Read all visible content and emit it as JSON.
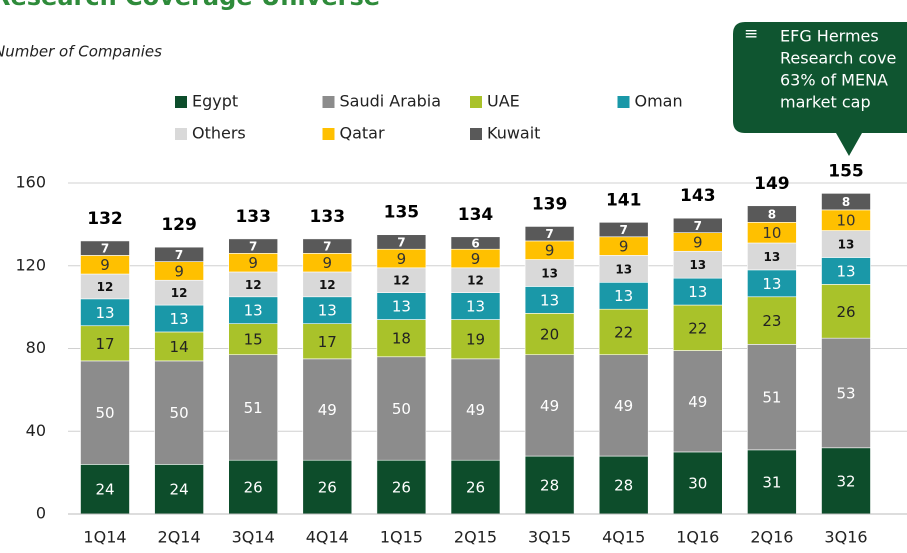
{
  "chart_data": {
    "type": "stacked_bar",
    "title": "Research Coverage Universe",
    "subtitle": "Number of Companies",
    "callout": [
      "EFG Hermes",
      "Research cove",
      "63% of MENA",
      "market cap"
    ],
    "categories": [
      "1Q14",
      "2Q14",
      "3Q14",
      "4Q14",
      "1Q15",
      "2Q15",
      "3Q15",
      "4Q15",
      "1Q16",
      "2Q16",
      "3Q16"
    ],
    "series": [
      {
        "name": "Egypt",
        "color": "#0d4d2b",
        "label_color": "#ffffff",
        "values": [
          24,
          24,
          26,
          26,
          26,
          26,
          28,
          28,
          30,
          31,
          32
        ]
      },
      {
        "name": "Saudi Arabia",
        "color": "#8c8c8c",
        "label_color": "#ffffff",
        "values": [
          50,
          50,
          51,
          49,
          50,
          49,
          49,
          49,
          49,
          51,
          53
        ]
      },
      {
        "name": "UAE",
        "color": "#a9c22a",
        "label_color": "#222222",
        "values": [
          17,
          14,
          15,
          17,
          18,
          19,
          20,
          22,
          22,
          23,
          26
        ]
      },
      {
        "name": "Oman",
        "color": "#1a98a8",
        "label_color": "#ffffff",
        "values": [
          13,
          13,
          13,
          13,
          13,
          13,
          13,
          13,
          13,
          13,
          13
        ]
      },
      {
        "name": "Others",
        "color": "#d9d9d9",
        "label_color": "#111111",
        "values": [
          12,
          12,
          12,
          12,
          12,
          12,
          13,
          13,
          13,
          13,
          13
        ]
      },
      {
        "name": "Qatar",
        "color": "#ffc000",
        "label_color": "#333333",
        "values": [
          9,
          9,
          9,
          9,
          9,
          9,
          9,
          9,
          9,
          10,
          10
        ]
      },
      {
        "name": "Kuwait",
        "color": "#595959",
        "label_color": "#ffffff",
        "values": [
          7,
          7,
          7,
          7,
          7,
          6,
          7,
          7,
          7,
          8,
          8
        ]
      }
    ],
    "totals": [
      132,
      129,
      133,
      133,
      135,
      134,
      139,
      141,
      143,
      149,
      155
    ],
    "ylim": [
      0,
      160
    ],
    "yticks": [
      0,
      40,
      80,
      120,
      160
    ],
    "grid": true
  }
}
